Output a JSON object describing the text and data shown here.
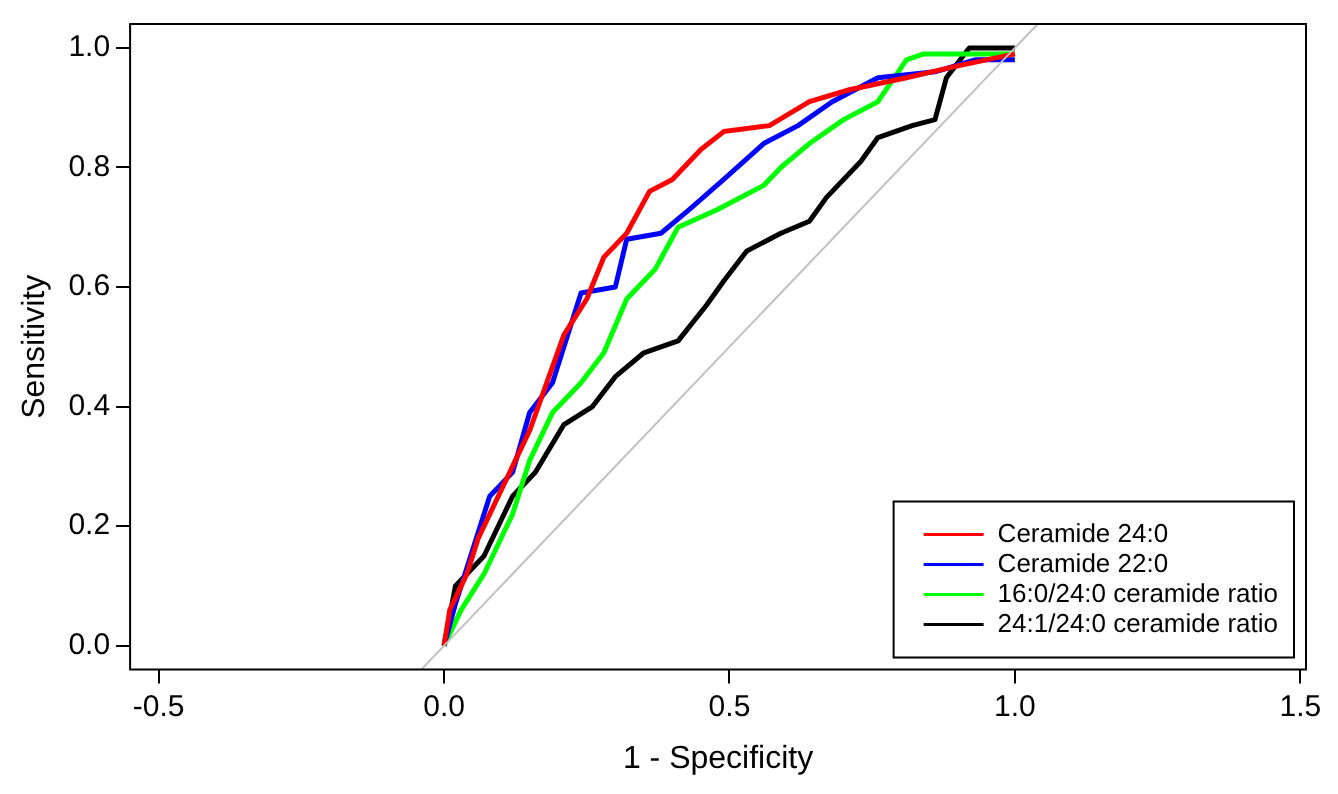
{
  "chart_data": {
    "type": "line",
    "xlabel": "1 - Specificity",
    "ylabel": "Sensitivity",
    "xlim": [
      -0.55,
      1.51
    ],
    "ylim": [
      -0.04,
      1.04
    ],
    "xticks": [
      {
        "value": -0.5,
        "label": "-0.5"
      },
      {
        "value": 0,
        "label": "0.0"
      },
      {
        "value": 0.5,
        "label": "0.5"
      },
      {
        "value": 1,
        "label": "1.0"
      },
      {
        "value": 1.5,
        "label": "1.5"
      }
    ],
    "yticks": [
      {
        "value": 0,
        "label": "0.0"
      },
      {
        "value": 0.2,
        "label": "0.2"
      },
      {
        "value": 0.4,
        "label": "0.4"
      },
      {
        "value": 0.6,
        "label": "0.6"
      },
      {
        "value": 0.8,
        "label": "0.8"
      },
      {
        "value": 1,
        "label": "1.0"
      }
    ],
    "grid": false,
    "legend": "bottom right",
    "marker": "none",
    "line_style": "solid",
    "series": [
      {
        "color": "#c0c0c0",
        "x": [
          -0.04,
          1.04
        ],
        "values": [
          -0.04,
          1.04
        ]
      },
      {
        "name": "Ceramide 24:0",
        "color": "#ff0000",
        "x": [
          0,
          0.01,
          0.04,
          0.06,
          0.1,
          0.15,
          0.18,
          0.21,
          0.25,
          0.28,
          0.32,
          0.36,
          0.4,
          0.45,
          0.49,
          0.57,
          0.64,
          0.71,
          0.81,
          0.9,
          1.0
        ],
        "values": [
          0,
          0.06,
          0.12,
          0.18,
          0.26,
          0.36,
          0.44,
          0.52,
          0.58,
          0.65,
          0.69,
          0.76,
          0.78,
          0.83,
          0.86,
          0.87,
          0.91,
          0.93,
          0.95,
          0.97,
          0.99
        ]
      },
      {
        "name": "Ceramide 22:0",
        "color": "#0000ff",
        "x": [
          0,
          0.02,
          0.08,
          0.12,
          0.15,
          0.19,
          0.21,
          0.24,
          0.3,
          0.32,
          0.38,
          0.43,
          0.49,
          0.56,
          0.62,
          0.68,
          0.76,
          0.86,
          0.93,
          1.0
        ],
        "values": [
          0,
          0.07,
          0.25,
          0.29,
          0.39,
          0.44,
          0.5,
          0.59,
          0.6,
          0.68,
          0.69,
          0.73,
          0.78,
          0.84,
          0.87,
          0.91,
          0.95,
          0.96,
          0.98,
          0.98
        ]
      },
      {
        "name": "16:0/24:0 ceramide ratio",
        "color": "#00ff00",
        "x": [
          0,
          0.03,
          0.07,
          0.12,
          0.15,
          0.19,
          0.24,
          0.28,
          0.32,
          0.37,
          0.41,
          0.48,
          0.56,
          0.59,
          0.64,
          0.7,
          0.76,
          0.81,
          0.84,
          1.0
        ],
        "values": [
          0,
          0.06,
          0.12,
          0.22,
          0.31,
          0.39,
          0.44,
          0.49,
          0.58,
          0.63,
          0.7,
          0.73,
          0.77,
          0.8,
          0.84,
          0.88,
          0.91,
          0.98,
          0.99,
          0.99
        ]
      },
      {
        "name": "24:1/24:0 ceramide ratio",
        "color": "#000000",
        "x": [
          0,
          0.02,
          0.07,
          0.12,
          0.16,
          0.21,
          0.26,
          0.3,
          0.35,
          0.41,
          0.46,
          0.49,
          0.53,
          0.59,
          0.64,
          0.67,
          0.73,
          0.76,
          0.82,
          0.86,
          0.88,
          0.92,
          1.0
        ],
        "values": [
          0,
          0.1,
          0.15,
          0.25,
          0.29,
          0.37,
          0.4,
          0.45,
          0.49,
          0.51,
          0.57,
          0.61,
          0.66,
          0.69,
          0.71,
          0.75,
          0.81,
          0.85,
          0.87,
          0.88,
          0.95,
          1.0,
          1.0
        ]
      }
    ]
  }
}
